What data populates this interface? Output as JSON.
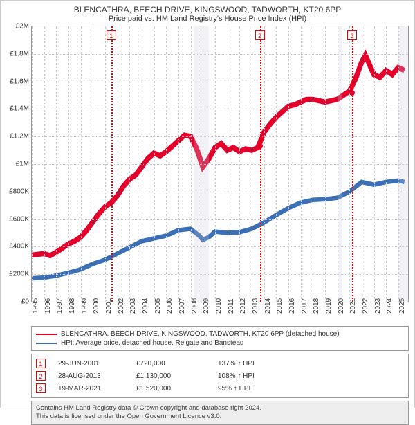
{
  "title_line1": "BLENCATHRA, BEECH DRIVE, KINGSWOOD, TADWORTH, KT20 6PP",
  "title_line2": "Price paid vs. HM Land Registry's House Price Index (HPI)",
  "chart": {
    "type": "line",
    "background_color": "#ffffff",
    "grid_color": "#cccccc",
    "border_color": "#999999",
    "x": {
      "min": 1995,
      "max": 2025.8,
      "ticks": [
        1995,
        1996,
        1997,
        1998,
        1999,
        2000,
        2001,
        2002,
        2003,
        2004,
        2005,
        2006,
        2007,
        2008,
        2009,
        2010,
        2011,
        2012,
        2013,
        2014,
        2015,
        2016,
        2017,
        2018,
        2019,
        2020,
        2021,
        2022,
        2023,
        2024,
        2025
      ]
    },
    "y": {
      "min": 0,
      "max": 2000000,
      "tick_step": 200000,
      "tick_labels": [
        "£0",
        "£200K",
        "£400K",
        "£600K",
        "£800K",
        "£1M",
        "£1.2M",
        "£1.4M",
        "£1.6M",
        "£1.8M",
        "£2M"
      ]
    },
    "recession_bands": [
      {
        "from": 2008.3,
        "to": 2009.5
      },
      {
        "from": 2020.1,
        "to": 2020.45
      },
      {
        "from": 2025.0,
        "to": 2025.8
      }
    ],
    "series": [
      {
        "name": "price",
        "color": "#e4002b",
        "width": 1.5,
        "points": [
          [
            1995.0,
            340000
          ],
          [
            1995.5,
            345000
          ],
          [
            1996.0,
            350000
          ],
          [
            1996.5,
            335000
          ],
          [
            1997.0,
            360000
          ],
          [
            1997.5,
            390000
          ],
          [
            1998.0,
            420000
          ],
          [
            1998.5,
            440000
          ],
          [
            1999.0,
            470000
          ],
          [
            1999.5,
            520000
          ],
          [
            2000.0,
            580000
          ],
          [
            2000.5,
            640000
          ],
          [
            2001.0,
            690000
          ],
          [
            2001.5,
            720000
          ],
          [
            2002.0,
            770000
          ],
          [
            2002.5,
            840000
          ],
          [
            2003.0,
            890000
          ],
          [
            2003.5,
            920000
          ],
          [
            2004.0,
            980000
          ],
          [
            2004.5,
            1040000
          ],
          [
            2005.0,
            1080000
          ],
          [
            2005.5,
            1060000
          ],
          [
            2006.0,
            1090000
          ],
          [
            2006.5,
            1130000
          ],
          [
            2007.0,
            1170000
          ],
          [
            2007.5,
            1210000
          ],
          [
            2008.0,
            1200000
          ],
          [
            2008.5,
            1110000
          ],
          [
            2009.0,
            980000
          ],
          [
            2009.5,
            1040000
          ],
          [
            2010.0,
            1120000
          ],
          [
            2010.5,
            1150000
          ],
          [
            2011.0,
            1100000
          ],
          [
            2011.5,
            1120000
          ],
          [
            2012.0,
            1090000
          ],
          [
            2012.5,
            1110000
          ],
          [
            2013.0,
            1100000
          ],
          [
            2013.5,
            1120000
          ],
          [
            2014.0,
            1230000
          ],
          [
            2014.5,
            1290000
          ],
          [
            2015.0,
            1340000
          ],
          [
            2015.5,
            1380000
          ],
          [
            2016.0,
            1420000
          ],
          [
            2016.5,
            1430000
          ],
          [
            2017.0,
            1450000
          ],
          [
            2017.5,
            1470000
          ],
          [
            2018.0,
            1470000
          ],
          [
            2018.5,
            1460000
          ],
          [
            2019.0,
            1450000
          ],
          [
            2019.5,
            1460000
          ],
          [
            2020.0,
            1470000
          ],
          [
            2020.5,
            1500000
          ],
          [
            2021.0,
            1530000
          ],
          [
            2021.5,
            1620000
          ],
          [
            2022.0,
            1740000
          ],
          [
            2022.3,
            1790000
          ],
          [
            2022.7,
            1710000
          ],
          [
            2023.0,
            1650000
          ],
          [
            2023.5,
            1630000
          ],
          [
            2024.0,
            1680000
          ],
          [
            2024.5,
            1650000
          ],
          [
            2025.0,
            1700000
          ],
          [
            2025.5,
            1680000
          ]
        ]
      },
      {
        "name": "hpi",
        "color": "#3b6fb6",
        "width": 1.3,
        "points": [
          [
            1995.0,
            170000
          ],
          [
            1996.0,
            175000
          ],
          [
            1997.0,
            190000
          ],
          [
            1998.0,
            210000
          ],
          [
            1999.0,
            235000
          ],
          [
            2000.0,
            275000
          ],
          [
            2001.0,
            305000
          ],
          [
            2002.0,
            350000
          ],
          [
            2003.0,
            395000
          ],
          [
            2004.0,
            440000
          ],
          [
            2005.0,
            460000
          ],
          [
            2006.0,
            480000
          ],
          [
            2007.0,
            520000
          ],
          [
            2008.0,
            530000
          ],
          [
            2008.7,
            480000
          ],
          [
            2009.0,
            450000
          ],
          [
            2009.5,
            470000
          ],
          [
            2010.0,
            510000
          ],
          [
            2011.0,
            500000
          ],
          [
            2012.0,
            505000
          ],
          [
            2013.0,
            530000
          ],
          [
            2014.0,
            575000
          ],
          [
            2015.0,
            630000
          ],
          [
            2016.0,
            680000
          ],
          [
            2017.0,
            720000
          ],
          [
            2018.0,
            740000
          ],
          [
            2019.0,
            745000
          ],
          [
            2020.0,
            755000
          ],
          [
            2021.0,
            800000
          ],
          [
            2022.0,
            870000
          ],
          [
            2023.0,
            850000
          ],
          [
            2024.0,
            870000
          ],
          [
            2025.0,
            880000
          ],
          [
            2025.5,
            870000
          ]
        ]
      }
    ],
    "events": [
      {
        "n": "1",
        "x": 2001.5,
        "marker_y": 720000
      },
      {
        "n": "2",
        "x": 2013.66,
        "marker_y": 1130000
      },
      {
        "n": "3",
        "x": 2021.22,
        "marker_y": 1520000
      }
    ],
    "marker_color": "#e4002b"
  },
  "legend": [
    {
      "color": "#e4002b",
      "label": "BLENCATHRA, BEECH DRIVE, KINGSWOOD, TADWORTH, KT20 6PP (detached house)"
    },
    {
      "color": "#3b6fb6",
      "label": "HPI: Average price, detached house, Reigate and Banstead"
    }
  ],
  "events_table": [
    {
      "n": "1",
      "date": "29-JUN-2001",
      "price": "£720,000",
      "pct": "137% ↑ HPI"
    },
    {
      "n": "2",
      "date": "28-AUG-2013",
      "price": "£1,130,000",
      "pct": "108% ↑ HPI"
    },
    {
      "n": "3",
      "date": "19-MAR-2021",
      "price": "£1,520,000",
      "pct": "95% ↑ HPI"
    }
  ],
  "footer_line1": "Contains HM Land Registry data © Crown copyright and database right 2024.",
  "footer_line2": "This data is licensed under the Open Government Licence v3.0."
}
